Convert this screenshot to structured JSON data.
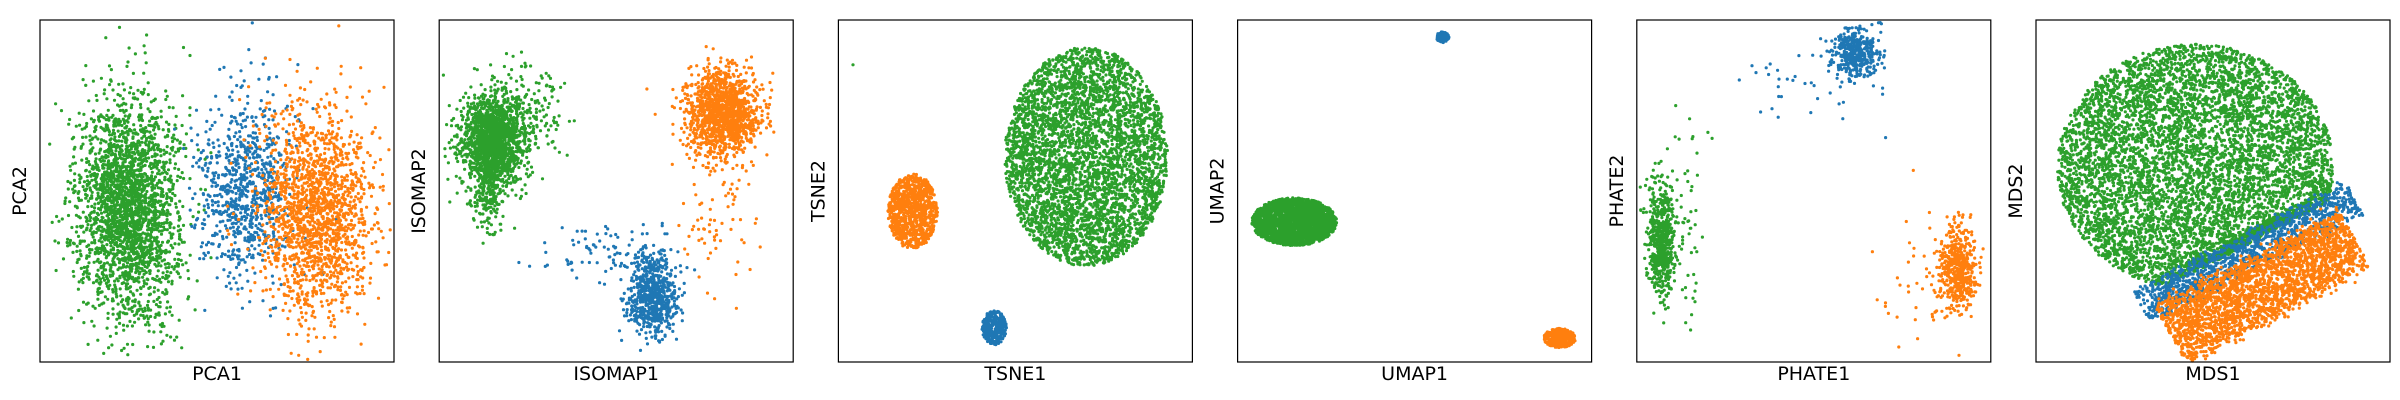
{
  "colors": {
    "blue": "#1f77b4",
    "orange": "#ff7f0e",
    "green": "#2ca02c",
    "axes_frame": "#000000",
    "background": "#ffffff"
  },
  "chart_data": [
    {
      "type": "scatter",
      "title": "",
      "xlabel": "PCA1",
      "ylabel": "PCA2",
      "ticks": false,
      "grid": false,
      "xlim": [
        0,
        1
      ],
      "ylim": [
        0,
        1
      ],
      "clusters": [
        {
          "color": "green",
          "shape": "gauss",
          "center": [
            0.25,
            0.45
          ],
          "spread": [
            0.07,
            0.16
          ],
          "n": 2600
        },
        {
          "color": "blue",
          "shape": "gauss",
          "center": [
            0.58,
            0.5
          ],
          "spread": [
            0.065,
            0.13
          ],
          "n": 800
        },
        {
          "color": "orange",
          "shape": "gauss",
          "center": [
            0.78,
            0.44
          ],
          "spread": [
            0.08,
            0.15
          ],
          "n": 1700
        }
      ]
    },
    {
      "type": "scatter",
      "title": "",
      "xlabel": "ISOMAP1",
      "ylabel": "ISOMAP2",
      "ticks": false,
      "grid": false,
      "xlim": [
        0,
        1
      ],
      "ylim": [
        0,
        1
      ],
      "clusters": [
        {
          "color": "green",
          "shape": "gauss",
          "center": [
            0.15,
            0.65
          ],
          "spread": [
            0.045,
            0.07
          ],
          "n": 1700
        },
        {
          "color": "green",
          "shape": "gauss",
          "center": [
            0.14,
            0.5
          ],
          "spread": [
            0.02,
            0.06
          ],
          "n": 200
        },
        {
          "color": "green",
          "shape": "gauss",
          "center": [
            0.27,
            0.72
          ],
          "spread": [
            0.04,
            0.08
          ],
          "n": 120
        },
        {
          "color": "orange",
          "shape": "gauss",
          "center": [
            0.8,
            0.73
          ],
          "spread": [
            0.05,
            0.06
          ],
          "n": 1300
        },
        {
          "color": "orange",
          "shape": "gauss",
          "center": [
            0.78,
            0.45
          ],
          "spread": [
            0.06,
            0.14
          ],
          "n": 90
        },
        {
          "color": "blue",
          "shape": "gauss",
          "center": [
            0.6,
            0.2
          ],
          "spread": [
            0.035,
            0.06
          ],
          "n": 700
        },
        {
          "color": "blue",
          "shape": "gauss",
          "center": [
            0.45,
            0.32
          ],
          "spread": [
            0.1,
            0.04
          ],
          "n": 80
        }
      ]
    },
    {
      "type": "scatter",
      "title": "",
      "xlabel": "TSNE1",
      "ylabel": "TSNE2",
      "ticks": false,
      "grid": false,
      "xlim": [
        0,
        1
      ],
      "ylim": [
        0,
        1
      ],
      "clusters": [
        {
          "color": "green",
          "shape": "disk",
          "center": [
            0.7,
            0.6
          ],
          "radius": [
            0.23,
            0.32
          ],
          "n": 4200
        },
        {
          "color": "orange",
          "shape": "disk",
          "center": [
            0.21,
            0.44
          ],
          "radius": [
            0.07,
            0.11
          ],
          "n": 900
        },
        {
          "color": "blue",
          "shape": "disk",
          "center": [
            0.44,
            0.1
          ],
          "radius": [
            0.035,
            0.05
          ],
          "n": 300
        },
        {
          "color": "green",
          "shape": "gauss",
          "center": [
            0.04,
            0.87
          ],
          "spread": [
            0.001,
            0.001
          ],
          "n": 1
        }
      ]
    },
    {
      "type": "scatter",
      "title": "",
      "xlabel": "UMAP1",
      "ylabel": "UMAP2",
      "ticks": false,
      "grid": false,
      "xlim": [
        0,
        1
      ],
      "ylim": [
        0,
        1
      ],
      "clusters": [
        {
          "color": "green",
          "shape": "disk",
          "center": [
            0.16,
            0.41
          ],
          "radius": [
            0.12,
            0.07
          ],
          "n": 2500
        },
        {
          "color": "blue",
          "shape": "disk",
          "center": [
            0.58,
            0.95
          ],
          "radius": [
            0.018,
            0.016
          ],
          "n": 150
        },
        {
          "color": "orange",
          "shape": "disk",
          "center": [
            0.91,
            0.07
          ],
          "radius": [
            0.045,
            0.028
          ],
          "n": 400
        }
      ]
    },
    {
      "type": "scatter",
      "title": "",
      "xlabel": "PHATE1",
      "ylabel": "PHATE2",
      "ticks": false,
      "grid": false,
      "xlim": [
        0,
        1
      ],
      "ylim": [
        0,
        1
      ],
      "clusters": [
        {
          "color": "green",
          "shape": "gauss",
          "center": [
            0.07,
            0.36
          ],
          "spread": [
            0.02,
            0.08
          ],
          "n": 600
        },
        {
          "color": "green",
          "shape": "gauss",
          "center": [
            0.14,
            0.42
          ],
          "spread": [
            0.03,
            0.18
          ],
          "n": 60
        },
        {
          "color": "blue",
          "shape": "gauss",
          "center": [
            0.62,
            0.9
          ],
          "spread": [
            0.035,
            0.035
          ],
          "n": 400
        },
        {
          "color": "blue",
          "shape": "gauss",
          "center": [
            0.5,
            0.82
          ],
          "spread": [
            0.1,
            0.05
          ],
          "n": 40
        },
        {
          "color": "orange",
          "shape": "gauss",
          "center": [
            0.91,
            0.27
          ],
          "spread": [
            0.025,
            0.06
          ],
          "n": 500
        },
        {
          "color": "orange",
          "shape": "gauss",
          "center": [
            0.82,
            0.2
          ],
          "spread": [
            0.06,
            0.12
          ],
          "n": 60
        }
      ]
    },
    {
      "type": "scatter",
      "title": "",
      "xlabel": "MDS1",
      "ylabel": "MDS2",
      "ticks": false,
      "grid": false,
      "xlim": [
        0,
        1
      ],
      "ylim": [
        0,
        1
      ],
      "clusters": [
        {
          "color": "green",
          "shape": "disk",
          "center": [
            0.45,
            0.57
          ],
          "radius": [
            0.39,
            0.36
          ],
          "clip": "above_band",
          "n": 6500
        },
        {
          "color": "blue",
          "shape": "band",
          "from": [
            0.3,
            0.16
          ],
          "to": [
            0.9,
            0.48
          ],
          "width": 0.05,
          "n": 1200
        },
        {
          "color": "orange",
          "shape": "band",
          "from": [
            0.38,
            0.08
          ],
          "to": [
            0.9,
            0.36
          ],
          "width": 0.09,
          "n": 2600
        }
      ]
    }
  ]
}
